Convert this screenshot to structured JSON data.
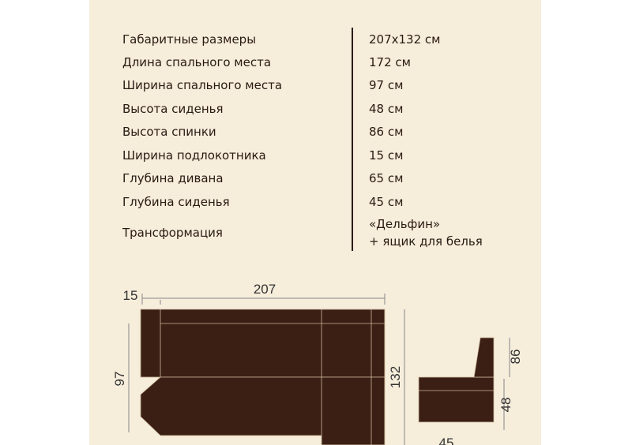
{
  "specs": {
    "rows": [
      [
        "Габаритные размеры",
        "207x132 см"
      ],
      [
        "Длина спального места",
        "172 см"
      ],
      [
        "Ширина спального места",
        "97 см"
      ],
      [
        "Высота сиденья",
        "48 см"
      ],
      [
        "Высота спинки",
        "86 см"
      ],
      [
        "Ширина подлокотника",
        "15 см"
      ],
      [
        "Глубина дивана",
        "65 см"
      ],
      [
        "Глубина сиденья",
        "45 см"
      ],
      [
        "Трансформация",
        [
          "«Дельфин»",
          "+ ящик для белья"
        ]
      ]
    ]
  },
  "diagram": {
    "armrest": "15",
    "length": "207",
    "sleep_width": "97",
    "depth": "132",
    "back_height": "86",
    "seat_height": "48",
    "seat_depth": "45"
  }
}
